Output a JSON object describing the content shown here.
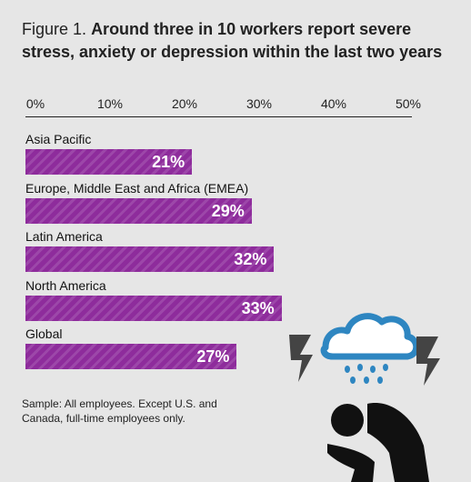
{
  "title": {
    "figure": "Figure 1.",
    "headline": "Around three in 10 workers report severe stress, anxiety or depression within the last two years"
  },
  "chart_data": {
    "type": "bar",
    "orientation": "horizontal",
    "categories": [
      "Asia Pacific",
      "Europe, Middle East and Africa (EMEA)",
      "Latin America",
      "North America",
      "Global"
    ],
    "values": [
      21,
      29,
      32,
      33,
      27
    ],
    "value_labels": [
      "21%",
      "29%",
      "32%",
      "33%",
      "27%"
    ],
    "xlim": [
      0,
      50
    ],
    "x_ticks": [
      "0%",
      "10%",
      "20%",
      "30%",
      "40%",
      "50%"
    ],
    "tick_values": [
      0,
      10,
      20,
      30,
      40,
      50
    ],
    "axis_position": "top",
    "grid": false,
    "legend": "none",
    "bar_color": "#8e2c9c"
  },
  "note": "Sample: All employees. Except U.S. and Canada, full-time employees only.",
  "illustration": {
    "icons": [
      "cloud-icon",
      "rain-icon",
      "lightning-icon",
      "stressed-person-icon"
    ],
    "cloud_color": "#2e86c1",
    "bolt_color": "#444444",
    "person_color": "#111111"
  }
}
